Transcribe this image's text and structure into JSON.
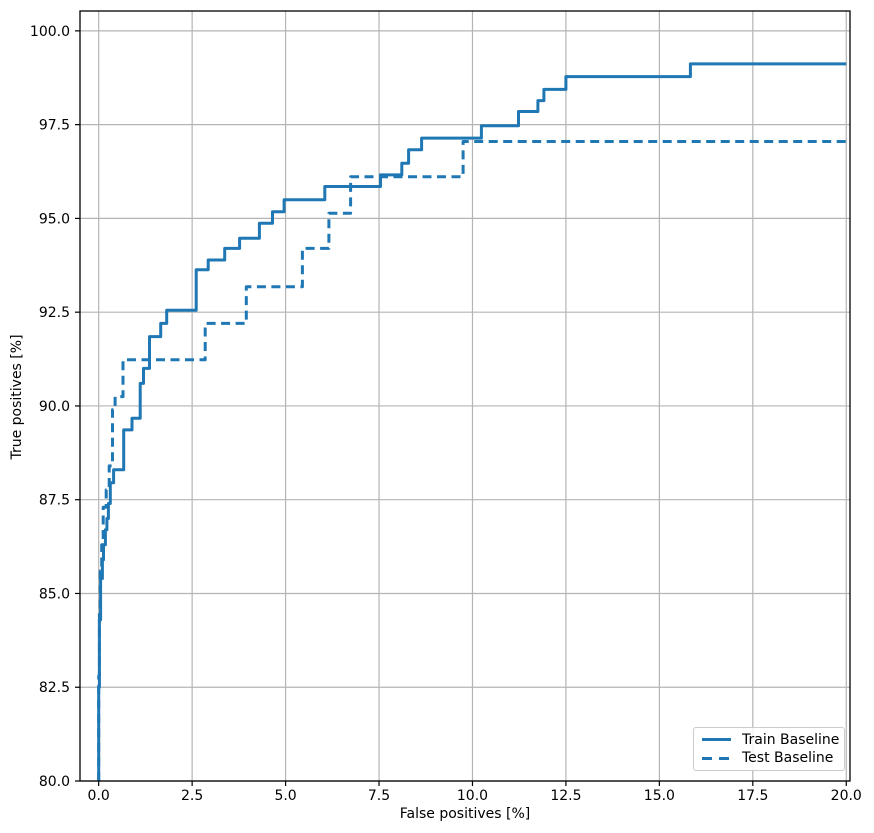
{
  "figure": {
    "background": "#ffffff"
  },
  "chart_data": {
    "type": "line",
    "title": "",
    "xlabel": "False positives [%]",
    "ylabel": "True positives [%]",
    "xlim": [
      -0.5,
      20.1
    ],
    "ylim": [
      80,
      100.53
    ],
    "grid": true,
    "grid_color": "#b4b4b4",
    "line_color": "#1f77b4",
    "legend_position": "lower right",
    "xticks": [
      0,
      2.5,
      5,
      7.5,
      10,
      12.5,
      15,
      17.5,
      20
    ],
    "xtick_labels": [
      "0.0",
      "2.5",
      "5.0",
      "7.5",
      "10.0",
      "12.5",
      "15.0",
      "17.5",
      "20.0"
    ],
    "yticks": [
      80,
      82.5,
      85,
      87.5,
      90,
      92.5,
      95,
      97.5,
      100
    ],
    "ytick_labels": [
      "80.0",
      "82.5",
      "85.0",
      "87.5",
      "90.0",
      "92.5",
      "95.0",
      "97.5",
      "100.0"
    ],
    "series": [
      {
        "name": "Train Baseline",
        "style": "solid",
        "vertices": [
          [
            0.0,
            80.0
          ],
          [
            0.0,
            82.5
          ],
          [
            0.02,
            82.5
          ],
          [
            0.02,
            84.3
          ],
          [
            0.05,
            84.3
          ],
          [
            0.05,
            85.4
          ],
          [
            0.1,
            85.4
          ],
          [
            0.1,
            85.9
          ],
          [
            0.13,
            85.9
          ],
          [
            0.13,
            86.3
          ],
          [
            0.18,
            86.3
          ],
          [
            0.18,
            86.7
          ],
          [
            0.22,
            86.7
          ],
          [
            0.22,
            87.0
          ],
          [
            0.26,
            87.0
          ],
          [
            0.26,
            87.4
          ],
          [
            0.31,
            87.4
          ],
          [
            0.31,
            87.95
          ],
          [
            0.4,
            87.95
          ],
          [
            0.4,
            88.3
          ],
          [
            0.67,
            88.3
          ],
          [
            0.67,
            89.36
          ],
          [
            0.89,
            89.36
          ],
          [
            0.89,
            89.67
          ],
          [
            1.11,
            89.67
          ],
          [
            1.11,
            90.6
          ],
          [
            1.2,
            90.6
          ],
          [
            1.2,
            91.0
          ],
          [
            1.36,
            91.0
          ],
          [
            1.36,
            91.85
          ],
          [
            1.66,
            91.85
          ],
          [
            1.66,
            92.2
          ],
          [
            1.82,
            92.2
          ],
          [
            1.82,
            92.55
          ],
          [
            2.61,
            92.55
          ],
          [
            2.61,
            93.63
          ],
          [
            2.93,
            93.63
          ],
          [
            2.93,
            93.89
          ],
          [
            3.37,
            93.89
          ],
          [
            3.37,
            94.2
          ],
          [
            3.77,
            94.2
          ],
          [
            3.77,
            94.47
          ],
          [
            4.3,
            94.47
          ],
          [
            4.3,
            94.87
          ],
          [
            4.65,
            94.87
          ],
          [
            4.65,
            95.18
          ],
          [
            4.96,
            95.18
          ],
          [
            4.96,
            95.5
          ],
          [
            6.05,
            95.5
          ],
          [
            6.05,
            95.85
          ],
          [
            7.54,
            95.85
          ],
          [
            7.54,
            96.16
          ],
          [
            8.11,
            96.16
          ],
          [
            8.11,
            96.47
          ],
          [
            8.29,
            96.47
          ],
          [
            8.29,
            96.83
          ],
          [
            8.64,
            96.83
          ],
          [
            8.64,
            97.14
          ],
          [
            10.24,
            97.14
          ],
          [
            10.24,
            97.47
          ],
          [
            11.23,
            97.47
          ],
          [
            11.23,
            97.85
          ],
          [
            11.75,
            97.85
          ],
          [
            11.75,
            98.14
          ],
          [
            11.91,
            98.14
          ],
          [
            11.91,
            98.44
          ],
          [
            12.5,
            98.44
          ],
          [
            12.5,
            98.78
          ],
          [
            15.83,
            98.78
          ],
          [
            15.83,
            99.12
          ],
          [
            20.0,
            99.12
          ]
        ]
      },
      {
        "name": "Test Baseline",
        "style": "dashed",
        "vertices": [
          [
            0.0,
            80.0
          ],
          [
            0.0,
            82.8
          ],
          [
            0.02,
            82.8
          ],
          [
            0.02,
            84.5
          ],
          [
            0.04,
            84.5
          ],
          [
            0.04,
            85.6
          ],
          [
            0.08,
            85.6
          ],
          [
            0.08,
            86.3
          ],
          [
            0.12,
            86.3
          ],
          [
            0.12,
            87.3
          ],
          [
            0.2,
            87.3
          ],
          [
            0.2,
            87.76
          ],
          [
            0.28,
            87.76
          ],
          [
            0.28,
            88.4
          ],
          [
            0.37,
            88.4
          ],
          [
            0.37,
            89.9
          ],
          [
            0.44,
            89.9
          ],
          [
            0.44,
            90.25
          ],
          [
            0.65,
            90.25
          ],
          [
            0.65,
            91.23
          ],
          [
            2.85,
            91.23
          ],
          [
            2.85,
            92.2
          ],
          [
            3.95,
            92.2
          ],
          [
            3.95,
            93.18
          ],
          [
            5.45,
            93.18
          ],
          [
            5.45,
            94.2
          ],
          [
            6.16,
            94.2
          ],
          [
            6.16,
            95.14
          ],
          [
            6.74,
            95.14
          ],
          [
            6.74,
            96.11
          ],
          [
            9.75,
            96.11
          ],
          [
            9.75,
            97.05
          ],
          [
            20.0,
            97.05
          ]
        ]
      }
    ]
  },
  "legend": {
    "items": [
      {
        "label": "Train Baseline",
        "style": "solid"
      },
      {
        "label": "Test Baseline",
        "style": "dashed"
      }
    ]
  }
}
